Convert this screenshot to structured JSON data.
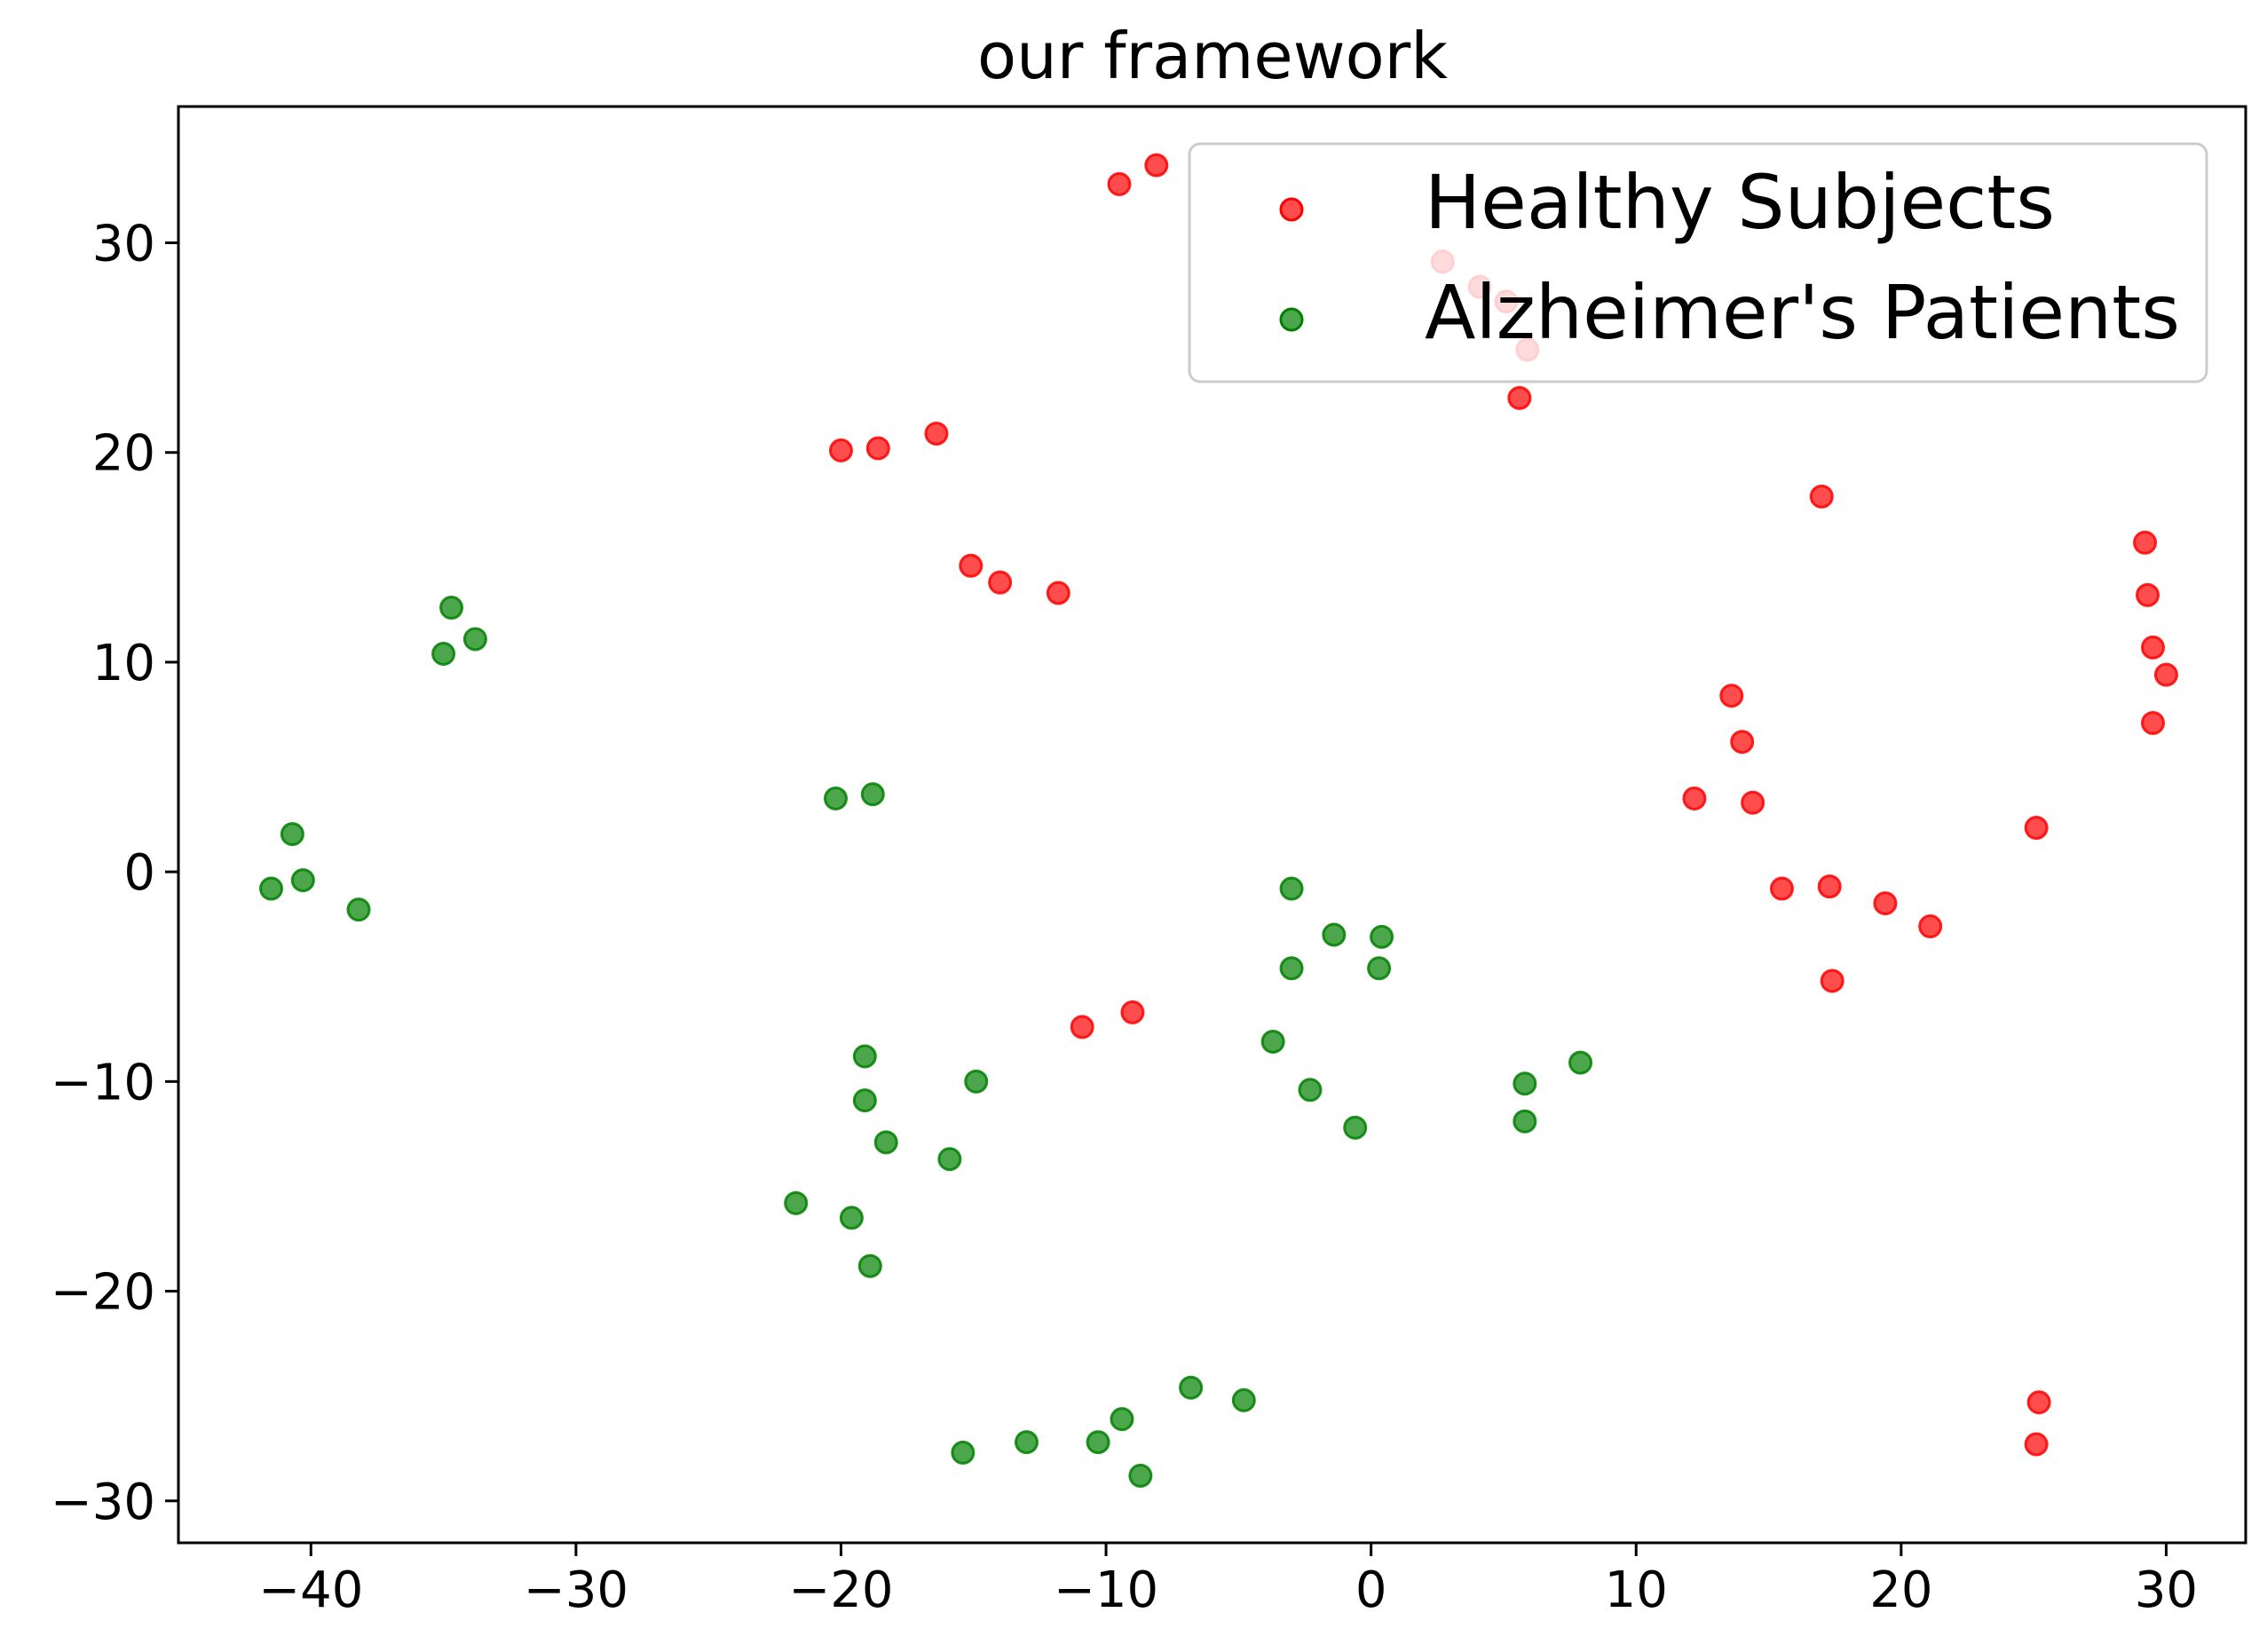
{
  "chart_data": {
    "type": "scatter",
    "title": "our framework",
    "xlabel": "",
    "ylabel": "",
    "xlim": [
      -45,
      33
    ],
    "ylim": [
      -32,
      36.5
    ],
    "xticks": [
      -40,
      -30,
      -20,
      -10,
      0,
      10,
      20,
      30
    ],
    "yticks": [
      -30,
      -20,
      -10,
      0,
      10,
      20,
      30
    ],
    "xtick_labels": [
      "−40",
      "−30",
      "−20",
      "−10",
      "0",
      "10",
      "20",
      "30"
    ],
    "ytick_labels": [
      "−30",
      "−20",
      "−10",
      "0",
      "10",
      "20",
      "30"
    ],
    "grid": false,
    "legend_position": "top-right",
    "series": [
      {
        "name": "Healthy Subjects",
        "color": "#ff0000",
        "points": [
          [
            -9.5,
            32.8
          ],
          [
            -8.1,
            33.7
          ],
          [
            2.7,
            29.1
          ],
          [
            4.1,
            27.9
          ],
          [
            5.1,
            27.2
          ],
          [
            5.9,
            24.9
          ],
          [
            5.6,
            22.6
          ],
          [
            -20,
            20.1
          ],
          [
            -18.6,
            20.2
          ],
          [
            -16.4,
            20.9
          ],
          [
            -15.1,
            14.6
          ],
          [
            -14,
            13.8
          ],
          [
            -11.8,
            13.3
          ],
          [
            17,
            17.9
          ],
          [
            29.2,
            15.7
          ],
          [
            29.3,
            13.2
          ],
          [
            29.5,
            10.7
          ],
          [
            30,
            9.4
          ],
          [
            29.5,
            7.1
          ],
          [
            13.6,
            8.4
          ],
          [
            14,
            6.2
          ],
          [
            12.2,
            3.5
          ],
          [
            14.4,
            3.3
          ],
          [
            25.1,
            2.1
          ],
          [
            15.5,
            -0.8
          ],
          [
            17.3,
            -0.7
          ],
          [
            19.4,
            -1.5
          ],
          [
            21.1,
            -2.6
          ],
          [
            17.4,
            -5.2
          ],
          [
            -10.9,
            -7.4
          ],
          [
            -9,
            -6.7
          ],
          [
            25.2,
            -25.3
          ],
          [
            25.1,
            -27.3
          ]
        ]
      },
      {
        "name": "Alzheimer's Patients",
        "color": "#008000",
        "points": [
          [
            -34.7,
            12.6
          ],
          [
            -35,
            10.4
          ],
          [
            -33.8,
            11.1
          ],
          [
            -40.7,
            1.8
          ],
          [
            -41.5,
            -0.8
          ],
          [
            -40.3,
            -0.4
          ],
          [
            -38.2,
            -1.8
          ],
          [
            -20.2,
            3.5
          ],
          [
            -18.8,
            3.7
          ],
          [
            -3,
            -0.8
          ],
          [
            -1.4,
            -3
          ],
          [
            0.4,
            -3.1
          ],
          [
            -3,
            -4.6
          ],
          [
            0.3,
            -4.6
          ],
          [
            -3.7,
            -8.1
          ],
          [
            -2.3,
            -10.4
          ],
          [
            -0.6,
            -12.2
          ],
          [
            5.8,
            -10.1
          ],
          [
            7.9,
            -9.1
          ],
          [
            5.8,
            -11.9
          ],
          [
            -19.1,
            -8.8
          ],
          [
            -14.9,
            -10
          ],
          [
            -19.1,
            -10.9
          ],
          [
            -18.3,
            -12.9
          ],
          [
            -15.9,
            -13.7
          ],
          [
            -21.7,
            -15.8
          ],
          [
            -19.6,
            -16.5
          ],
          [
            -18.9,
            -18.8
          ],
          [
            -6.8,
            -24.6
          ],
          [
            -4.8,
            -25.2
          ],
          [
            -9.4,
            -26.1
          ],
          [
            -10.3,
            -27.2
          ],
          [
            -13,
            -27.2
          ],
          [
            -15.4,
            -27.7
          ],
          [
            -8.7,
            -28.8
          ]
        ]
      }
    ]
  }
}
